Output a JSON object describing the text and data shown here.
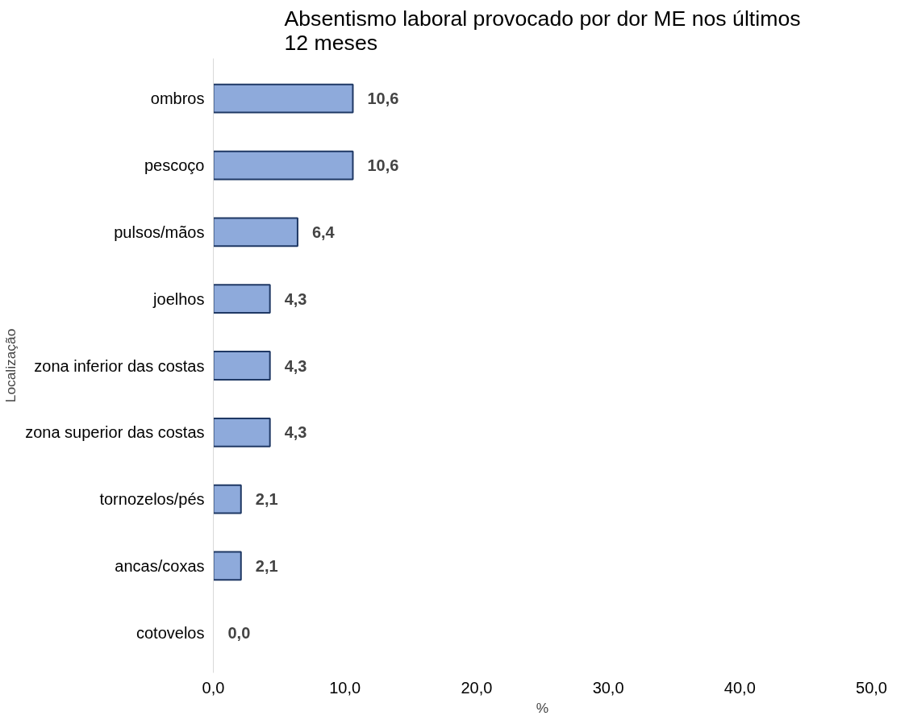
{
  "chart_data": {
    "type": "bar",
    "orientation": "horizontal",
    "title": "Absentismo laboral provocado por dor ME nos últimos 12 meses",
    "xlabel": "%",
    "ylabel": "Localização",
    "categories": [
      "ombros",
      "pescoço",
      "pulsos/mãos",
      "joelhos",
      "zona inferior das costas",
      "zona superior das costas",
      "tornozelos/pés",
      "ancas/coxas",
      "cotovelos"
    ],
    "values": [
      10.6,
      10.6,
      6.4,
      4.3,
      4.3,
      4.3,
      2.1,
      2.1,
      0.0
    ],
    "value_labels": [
      "10,6",
      "10,6",
      "6,4",
      "4,3",
      "4,3",
      "4,3",
      "2,1",
      "2,1",
      "0,0"
    ],
    "color": "#8eaadb",
    "xlim": [
      0,
      50
    ],
    "xticks": [
      {
        "value": 0,
        "label": "0,0"
      },
      {
        "value": 10,
        "label": "10,0"
      },
      {
        "value": 20,
        "label": "20,0"
      },
      {
        "value": 30,
        "label": "30,0"
      },
      {
        "value": 40,
        "label": "40,0"
      },
      {
        "value": 50,
        "label": "50,0"
      }
    ],
    "grid": false
  }
}
